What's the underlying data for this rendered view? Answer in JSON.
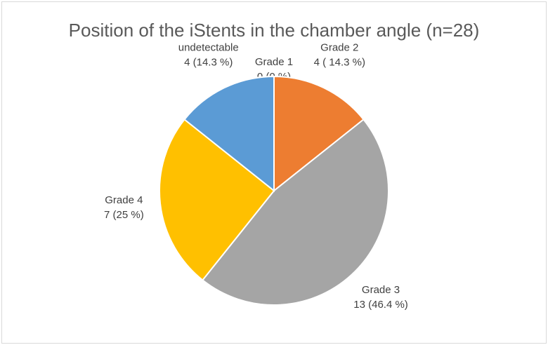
{
  "chart_data": {
    "type": "pie",
    "title": "Position of the iStents in the chamber angle (n=28)",
    "categories": [
      "Grade 1",
      "Grade 2",
      "Grade 3",
      "Grade 4",
      "undetectable"
    ],
    "values": [
      0,
      4,
      13,
      7,
      4
    ],
    "value_labels": [
      "0 (0 %)",
      "4 ( 14.3 %)",
      "13 (46.4 %)",
      "7 (25 %)",
      "4 (14.3 %)"
    ],
    "colors": [
      "#4472c4",
      "#ed7d31",
      "#a5a5a5",
      "#ffc000",
      "#5b9bd5"
    ]
  }
}
